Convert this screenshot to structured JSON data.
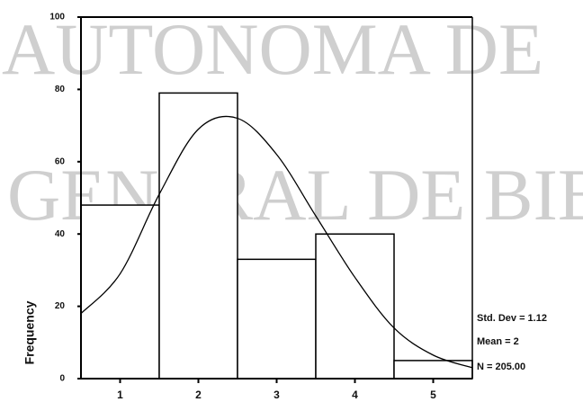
{
  "chart_data": {
    "type": "histogram",
    "watermark": [
      "AUTONOMA DE",
      "GENERAL DE BIB"
    ],
    "y_label": "Frequency",
    "bins": [
      0.5,
      1.5,
      2.5,
      3.5,
      4.5,
      5.5
    ],
    "values": [
      48,
      79,
      33,
      40,
      5
    ],
    "xlim": [
      0.5,
      5.5
    ],
    "xticks": [
      1,
      2,
      3,
      4,
      5
    ],
    "ylim": [
      0,
      100
    ],
    "yticks": [
      0,
      20,
      40,
      60,
      80,
      100
    ],
    "color": "#ffffff",
    "curve": {
      "x": [
        0.5,
        1,
        1.5,
        2,
        2.5,
        3,
        3.5,
        4,
        4.5,
        5,
        5.5
      ],
      "y": [
        18,
        29,
        51,
        69,
        72,
        62,
        45,
        28,
        14,
        6.5,
        3
      ]
    },
    "stats": [
      "Std. Dev = 1.12",
      "Mean = 2",
      "N = 205.00"
    ]
  }
}
